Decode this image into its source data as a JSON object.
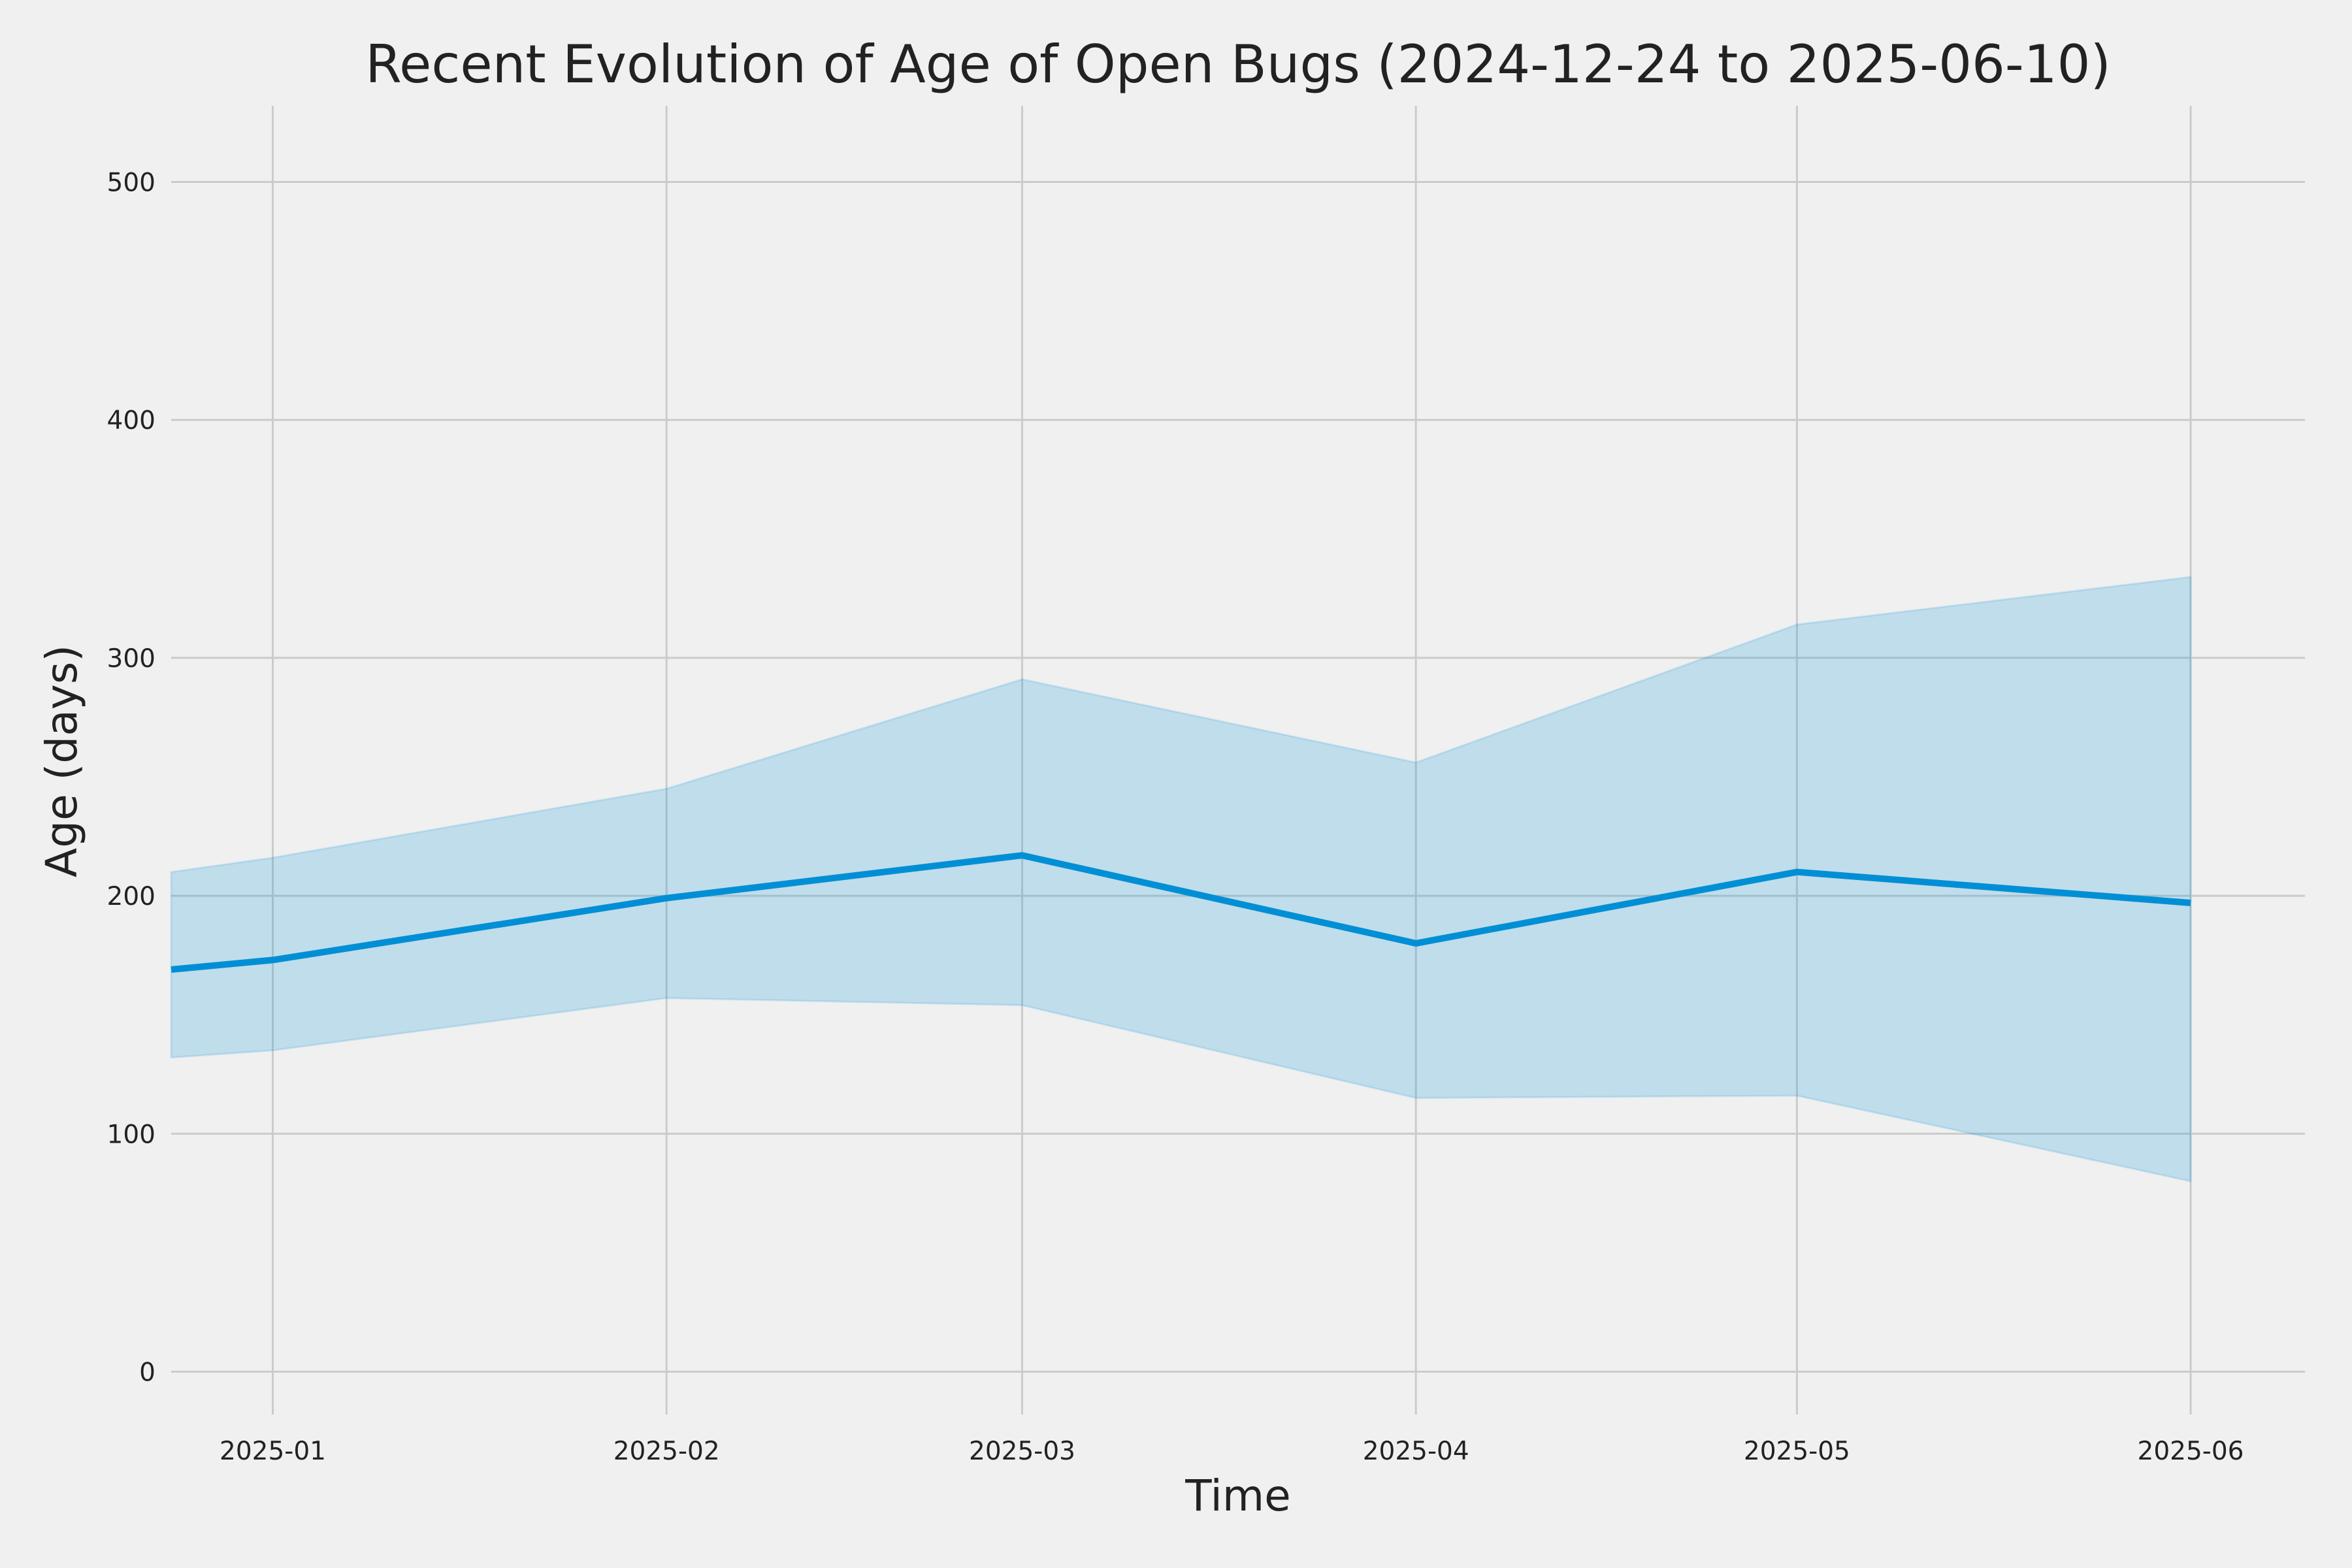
{
  "chart_data": {
    "type": "line",
    "title": "Recent Evolution of Age of Open Bugs (2024-12-24 to 2025-06-10)",
    "xlabel": "Time",
    "ylabel": "Age (days)",
    "xlim": [
      "2024-12-24",
      "2025-06-10"
    ],
    "ylim": [
      -18,
      532
    ],
    "yticks": [
      0,
      100,
      200,
      300,
      400,
      500
    ],
    "xticks": [
      "2025-01-01",
      "2025-02-01",
      "2025-03-01",
      "2025-04-01",
      "2025-05-01",
      "2025-06-01"
    ],
    "xtick_labels": [
      "2025-01",
      "2025-02",
      "2025-03",
      "2025-04",
      "2025-05",
      "2025-06"
    ],
    "grid": true,
    "series": [
      {
        "x": [
          "2024-12-24",
          "2025-01-01",
          "2025-02-01",
          "2025-03-01",
          "2025-04-01",
          "2025-05-01",
          "2025-06-01"
        ],
        "values": [
          169,
          173,
          199,
          217,
          180,
          210,
          197
        ],
        "band_upper": [
          210,
          216,
          245,
          291,
          256,
          314,
          334
        ],
        "band_lower": [
          132,
          135,
          157,
          154,
          115,
          116,
          80
        ],
        "color": "#008fd5",
        "band_color": "#008fd5"
      }
    ]
  }
}
